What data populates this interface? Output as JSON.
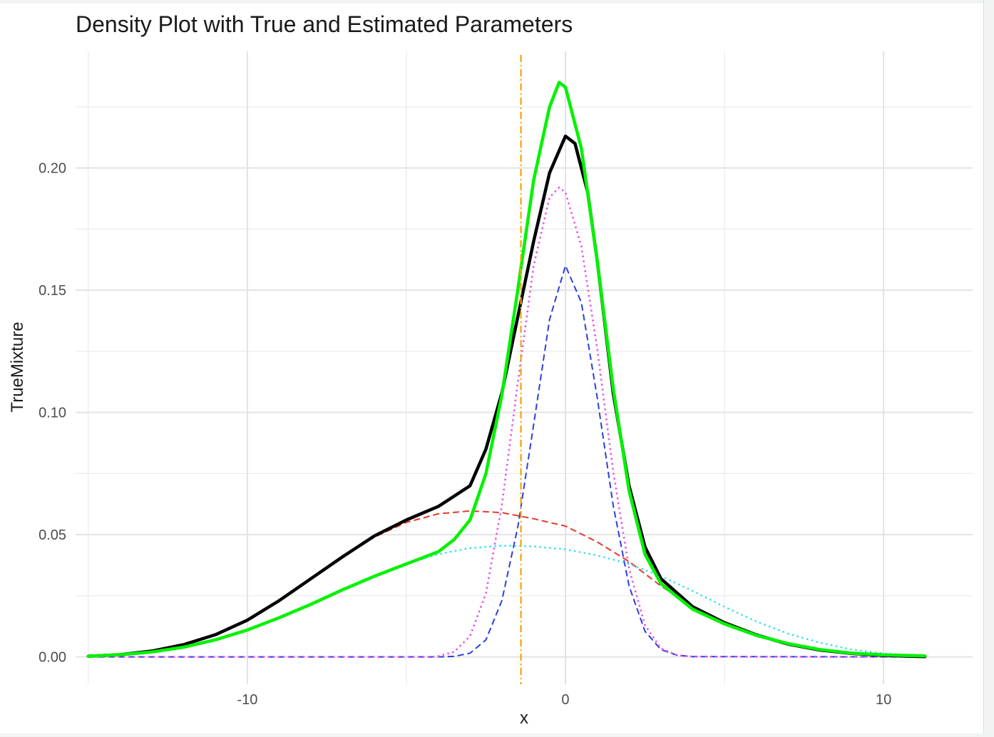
{
  "chart_data": {
    "type": "line",
    "title": "Density Plot with True and Estimated Parameters",
    "xlabel": "x",
    "ylabel": "TrueMixture",
    "xlim": [
      -15.4,
      12.8
    ],
    "ylim": [
      -0.0112,
      0.2477
    ],
    "x_ticks": [
      -10,
      0,
      10
    ],
    "x_tick_labels": [
      "-10",
      "0",
      "10"
    ],
    "y_ticks": [
      0.0,
      0.05,
      0.1,
      0.15,
      0.2
    ],
    "y_tick_labels": [
      "0.00",
      "0.05",
      "0.10",
      "0.15",
      "0.20"
    ],
    "grid": true,
    "legend": "none",
    "vline": {
      "x": -1.4,
      "color": "#f5a300",
      "style": "dotdash"
    },
    "series": [
      {
        "key": "comp1_true",
        "color": "#e8382a",
        "style": "dashed",
        "width": 2,
        "points": [
          [
            -15,
            0.0003
          ],
          [
            -14,
            0.0009
          ],
          [
            -13,
            0.0024
          ],
          [
            -12,
            0.005
          ],
          [
            -11,
            0.0091
          ],
          [
            -10,
            0.015
          ],
          [
            -9,
            0.023
          ],
          [
            -8,
            0.032
          ],
          [
            -7,
            0.041
          ],
          [
            -6,
            0.049
          ],
          [
            -5,
            0.055
          ],
          [
            -4,
            0.0585
          ],
          [
            -3,
            0.0597
          ],
          [
            -2,
            0.059
          ],
          [
            -1,
            0.0565
          ],
          [
            0,
            0.0535
          ],
          [
            1,
            0.047
          ],
          [
            2,
            0.039
          ],
          [
            3,
            0.029
          ],
          [
            4,
            0.0205
          ],
          [
            5,
            0.014
          ],
          [
            6,
            0.0085
          ],
          [
            7,
            0.0048
          ],
          [
            8,
            0.0025
          ],
          [
            9,
            0.0012
          ],
          [
            10,
            0.0005
          ],
          [
            11,
            0.0002
          ],
          [
            11.3,
            0.0001
          ]
        ]
      },
      {
        "key": "comp2_true",
        "color": "#2a3fe0",
        "style": "dashed",
        "width": 2,
        "points": [
          [
            -15,
            0.0
          ],
          [
            -4,
            0.0
          ],
          [
            -3.5,
            0.0002
          ],
          [
            -3,
            0.0015
          ],
          [
            -2.5,
            0.007
          ],
          [
            -2,
            0.023
          ],
          [
            -1.5,
            0.053
          ],
          [
            -1,
            0.095
          ],
          [
            -0.5,
            0.138
          ],
          [
            0,
            0.16
          ],
          [
            0.5,
            0.145
          ],
          [
            1,
            0.106
          ],
          [
            1.5,
            0.062
          ],
          [
            2,
            0.029
          ],
          [
            2.5,
            0.0105
          ],
          [
            3,
            0.003
          ],
          [
            3.5,
            0.0007
          ],
          [
            4,
            0.0001
          ],
          [
            11.3,
            0.0
          ]
        ]
      },
      {
        "key": "comp1_est",
        "color": "#33e0ee",
        "style": "dotted",
        "width": 2.4,
        "points": [
          [
            -15,
            0.0003
          ],
          [
            -14,
            0.0009
          ],
          [
            -13,
            0.002
          ],
          [
            -12,
            0.004
          ],
          [
            -11,
            0.007
          ],
          [
            -10,
            0.011
          ],
          [
            -9,
            0.016
          ],
          [
            -8,
            0.0215
          ],
          [
            -7,
            0.0275
          ],
          [
            -6,
            0.033
          ],
          [
            -5,
            0.038
          ],
          [
            -4,
            0.042
          ],
          [
            -3,
            0.0445
          ],
          [
            -2,
            0.0455
          ],
          [
            -1,
            0.0452
          ],
          [
            0,
            0.044
          ],
          [
            1,
            0.0415
          ],
          [
            2,
            0.038
          ],
          [
            3,
            0.033
          ],
          [
            4,
            0.027
          ],
          [
            5,
            0.0205
          ],
          [
            6,
            0.0145
          ],
          [
            7,
            0.0095
          ],
          [
            8,
            0.0058
          ],
          [
            9,
            0.003
          ],
          [
            10,
            0.0014
          ],
          [
            11,
            0.0006
          ],
          [
            11.3,
            0.0004
          ]
        ]
      },
      {
        "key": "comp2_est",
        "color": "#e855e8",
        "style": "dotted",
        "width": 2.6,
        "points": [
          [
            -15,
            0.0
          ],
          [
            -4.2,
            0.0
          ],
          [
            -4,
            0.0003
          ],
          [
            -3.5,
            0.002
          ],
          [
            -3,
            0.0085
          ],
          [
            -2.5,
            0.026
          ],
          [
            -2,
            0.062
          ],
          [
            -1.5,
            0.112
          ],
          [
            -1,
            0.16
          ],
          [
            -0.5,
            0.188
          ],
          [
            -0.2,
            0.192
          ],
          [
            0,
            0.19
          ],
          [
            0.5,
            0.168
          ],
          [
            1,
            0.126
          ],
          [
            1.5,
            0.076
          ],
          [
            2,
            0.036
          ],
          [
            2.5,
            0.013
          ],
          [
            3,
            0.0035
          ],
          [
            3.5,
            0.0007
          ],
          [
            4,
            0.0001
          ],
          [
            11.3,
            0.0
          ]
        ]
      },
      {
        "key": "mixture_true",
        "color": "#000000",
        "style": "solid",
        "width": 4.5,
        "points": [
          [
            -15,
            0.0003
          ],
          [
            -14,
            0.0009
          ],
          [
            -13,
            0.0024
          ],
          [
            -12,
            0.005
          ],
          [
            -11,
            0.0091
          ],
          [
            -10,
            0.015
          ],
          [
            -9,
            0.023
          ],
          [
            -8,
            0.032
          ],
          [
            -7,
            0.041
          ],
          [
            -6,
            0.0495
          ],
          [
            -5,
            0.056
          ],
          [
            -4,
            0.0615
          ],
          [
            -3,
            0.07
          ],
          [
            -2.5,
            0.085
          ],
          [
            -2,
            0.108
          ],
          [
            -1.5,
            0.139
          ],
          [
            -1,
            0.17
          ],
          [
            -0.5,
            0.198
          ],
          [
            0,
            0.213
          ],
          [
            0.3,
            0.21
          ],
          [
            0.7,
            0.19
          ],
          [
            1,
            0.162
          ],
          [
            1.5,
            0.108
          ],
          [
            2,
            0.07
          ],
          [
            2.5,
            0.045
          ],
          [
            3,
            0.032
          ],
          [
            4,
            0.0205
          ],
          [
            5,
            0.014
          ],
          [
            6,
            0.009
          ],
          [
            7,
            0.0052
          ],
          [
            8,
            0.0028
          ],
          [
            9,
            0.0014
          ],
          [
            10,
            0.0006
          ],
          [
            11,
            0.0002
          ],
          [
            11.3,
            0.0001
          ]
        ]
      },
      {
        "key": "mixture_est",
        "color": "#00f200",
        "style": "solid",
        "width": 4.5,
        "points": [
          [
            -15,
            0.0003
          ],
          [
            -14,
            0.0009
          ],
          [
            -13,
            0.002
          ],
          [
            -12,
            0.004
          ],
          [
            -11,
            0.007
          ],
          [
            -10,
            0.011
          ],
          [
            -9,
            0.016
          ],
          [
            -8,
            0.0215
          ],
          [
            -7,
            0.0275
          ],
          [
            -6,
            0.033
          ],
          [
            -5,
            0.038
          ],
          [
            -4,
            0.043
          ],
          [
            -3.5,
            0.048
          ],
          [
            -3,
            0.056
          ],
          [
            -2.5,
            0.075
          ],
          [
            -2,
            0.107
          ],
          [
            -1.5,
            0.15
          ],
          [
            -1,
            0.195
          ],
          [
            -0.5,
            0.225
          ],
          [
            -0.2,
            0.235
          ],
          [
            0,
            0.233
          ],
          [
            0.5,
            0.208
          ],
          [
            1,
            0.162
          ],
          [
            1.5,
            0.11
          ],
          [
            2,
            0.068
          ],
          [
            2.5,
            0.042
          ],
          [
            3,
            0.03
          ],
          [
            4,
            0.0195
          ],
          [
            5,
            0.0135
          ],
          [
            6,
            0.0088
          ],
          [
            7,
            0.0054
          ],
          [
            8,
            0.003
          ],
          [
            9,
            0.0015
          ],
          [
            10,
            0.0008
          ],
          [
            11,
            0.0005
          ],
          [
            11.3,
            0.0004
          ]
        ]
      }
    ]
  }
}
